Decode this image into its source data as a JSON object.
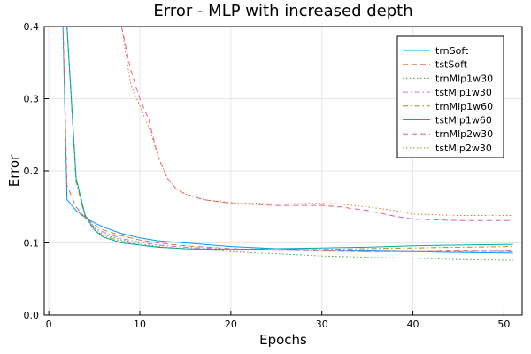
{
  "chart_data": {
    "type": "line",
    "title": "Error - MLP with increased depth",
    "xlabel": "Epochs",
    "ylabel": "Error",
    "xlim": [
      -0.5,
      52
    ],
    "ylim": [
      0,
      0.4
    ],
    "xticks": [
      0,
      10,
      20,
      30,
      40,
      50
    ],
    "yticks": [
      0.0,
      0.1,
      0.2,
      0.3,
      0.4
    ],
    "ytick_labels": [
      "0.0",
      "0.1",
      "0.2",
      "0.3",
      "0.4"
    ],
    "grid": true,
    "legend_position": "top-right",
    "series": [
      {
        "name": "trnSoft",
        "color": "#009AFA",
        "dash": "solid",
        "x": [
          1,
          2,
          3,
          4,
          5,
          6,
          8,
          10,
          12,
          15,
          20,
          25,
          30,
          35,
          40,
          45,
          51
        ],
        "y": [
          0.7,
          0.16,
          0.145,
          0.135,
          0.128,
          0.122,
          0.113,
          0.107,
          0.103,
          0.1,
          0.095,
          0.092,
          0.09,
          0.089,
          0.088,
          0.087,
          0.086
        ]
      },
      {
        "name": "tstSoft",
        "color": "#E36F47",
        "dash": "dashed",
        "x": [
          1,
          2,
          3,
          4,
          5,
          6,
          8,
          10,
          12,
          15,
          20,
          25,
          30,
          35,
          40,
          45,
          51
        ],
        "y": [
          0.7,
          0.18,
          0.15,
          0.135,
          0.125,
          0.118,
          0.11,
          0.104,
          0.1,
          0.096,
          0.092,
          0.09,
          0.089,
          0.088,
          0.088,
          0.089,
          0.088
        ]
      },
      {
        "name": "trnMlp1w30",
        "color": "#3EA44E",
        "dash": "dotted",
        "x": [
          1,
          2,
          3,
          4,
          5,
          6,
          8,
          10,
          12,
          15,
          20,
          25,
          30,
          35,
          40,
          45,
          51
        ],
        "y": [
          0.8,
          0.4,
          0.19,
          0.135,
          0.12,
          0.112,
          0.104,
          0.099,
          0.095,
          0.092,
          0.088,
          0.085,
          0.082,
          0.08,
          0.079,
          0.077,
          0.076
        ]
      },
      {
        "name": "tstMlp1w30",
        "color": "#C371D2",
        "dash": "dashdot",
        "x": [
          1,
          2,
          3,
          4,
          5,
          6,
          8,
          10,
          12,
          15,
          20,
          25,
          30,
          35,
          40,
          45,
          51
        ],
        "y": [
          0.8,
          0.4,
          0.185,
          0.138,
          0.122,
          0.115,
          0.106,
          0.101,
          0.097,
          0.094,
          0.091,
          0.09,
          0.089,
          0.088,
          0.088,
          0.088,
          0.089
        ]
      },
      {
        "name": "trnMlp1w60",
        "color": "#AC8D18",
        "dash": "dashdot",
        "x": [
          1,
          2,
          3,
          4,
          5,
          6,
          8,
          10,
          12,
          15,
          20,
          25,
          30,
          35,
          40,
          45,
          51
        ],
        "y": [
          0.8,
          0.4,
          0.185,
          0.135,
          0.118,
          0.11,
          0.102,
          0.097,
          0.094,
          0.092,
          0.09,
          0.09,
          0.091,
          0.092,
          0.093,
          0.094,
          0.095
        ]
      },
      {
        "name": "tstMlp1w60",
        "color": "#00A9AD",
        "dash": "solid",
        "x": [
          1,
          2,
          3,
          4,
          5,
          6,
          8,
          10,
          12,
          15,
          20,
          25,
          30,
          35,
          40,
          45,
          51
        ],
        "y": [
          0.8,
          0.4,
          0.19,
          0.138,
          0.118,
          0.108,
          0.1,
          0.097,
          0.094,
          0.092,
          0.091,
          0.092,
          0.093,
          0.094,
          0.096,
          0.097,
          0.098
        ]
      },
      {
        "name": "trnMlp2w30",
        "color": "#ED5D92",
        "dash": "dashed",
        "x": [
          8,
          9,
          10,
          11,
          12,
          13,
          14,
          15,
          17,
          20,
          25,
          30,
          32,
          35,
          38,
          40,
          45,
          51
        ],
        "y": [
          0.4,
          0.34,
          0.3,
          0.27,
          0.22,
          0.19,
          0.175,
          0.168,
          0.16,
          0.155,
          0.152,
          0.152,
          0.15,
          0.145,
          0.137,
          0.133,
          0.131,
          0.131
        ]
      },
      {
        "name": "tstMlp2w30",
        "color": "#C68125",
        "dash": "dotted",
        "x": [
          8,
          9,
          10,
          11,
          12,
          13,
          14,
          15,
          17,
          20,
          25,
          30,
          32,
          35,
          38,
          40,
          45,
          51
        ],
        "y": [
          0.4,
          0.32,
          0.29,
          0.26,
          0.22,
          0.19,
          0.175,
          0.168,
          0.16,
          0.156,
          0.154,
          0.155,
          0.154,
          0.15,
          0.145,
          0.14,
          0.138,
          0.138
        ]
      }
    ]
  }
}
